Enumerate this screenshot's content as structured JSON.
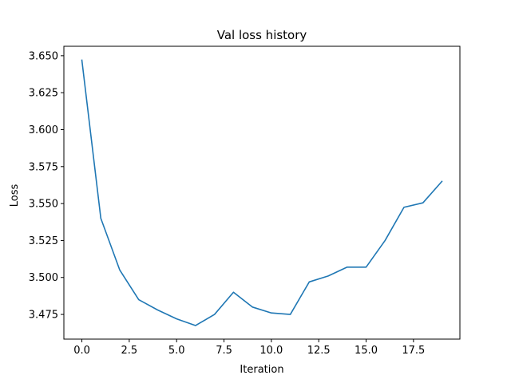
{
  "chart_data": {
    "type": "line",
    "title": "Val loss history",
    "xlabel": "Iteration",
    "ylabel": "Loss",
    "xlim": [
      -0.95,
      19.95
    ],
    "ylim": [
      3.4583,
      3.6564
    ],
    "xticks": [
      0,
      2.5,
      5,
      7.5,
      10,
      12.5,
      15,
      17.5
    ],
    "xtick_labels": [
      "0.0",
      "2.5",
      "5.0",
      "7.5",
      "10.0",
      "12.5",
      "15.0",
      "17.5"
    ],
    "yticks": [
      3.475,
      3.5,
      3.525,
      3.55,
      3.575,
      3.6,
      3.625,
      3.65
    ],
    "ytick_labels": [
      "3.475",
      "3.500",
      "3.525",
      "3.550",
      "3.575",
      "3.600",
      "3.625",
      "3.650"
    ],
    "grid": false,
    "series": [
      {
        "color": "#1f77b4",
        "x": [
          0,
          1,
          2,
          3,
          4,
          5,
          6,
          7,
          8,
          9,
          10,
          11,
          12,
          13,
          14,
          15,
          16,
          17,
          18,
          19
        ],
        "y": [
          3.647,
          3.54,
          3.505,
          3.485,
          3.478,
          3.472,
          3.4675,
          3.475,
          3.49,
          3.48,
          3.476,
          3.475,
          3.497,
          3.501,
          3.507,
          3.507,
          3.525,
          3.5475,
          3.5505,
          3.565
        ]
      }
    ]
  }
}
